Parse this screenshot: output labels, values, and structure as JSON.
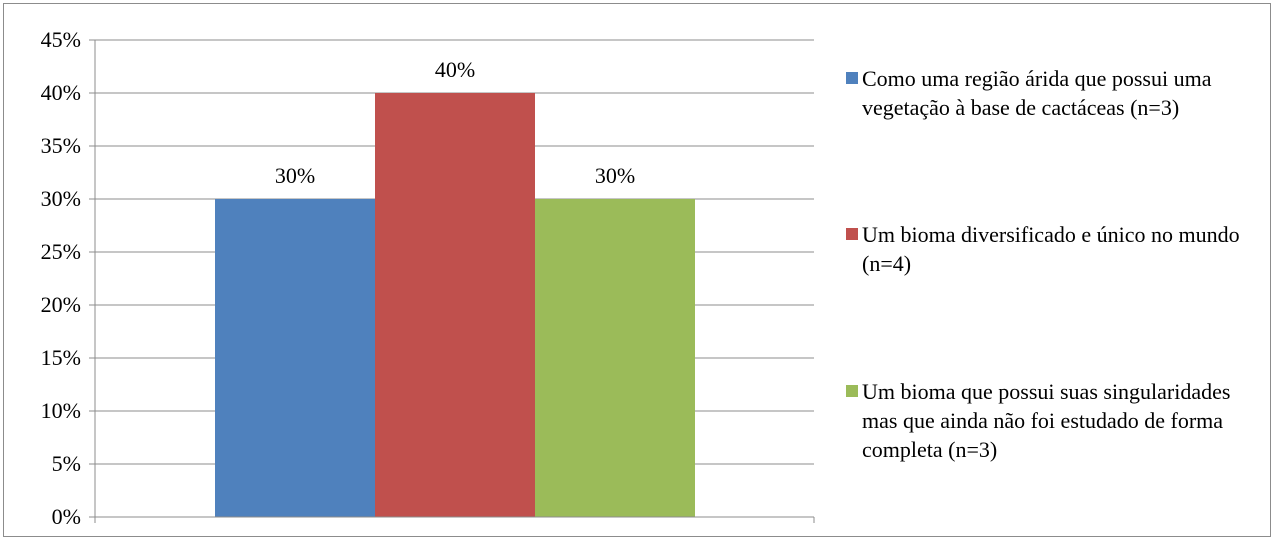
{
  "chart_data": {
    "type": "bar",
    "title": "",
    "xlabel": "",
    "ylabel": "",
    "ylim": [
      0,
      45
    ],
    "yticks": [
      "0%",
      "5%",
      "10%",
      "15%",
      "20%",
      "25%",
      "30%",
      "35%",
      "40%",
      "45%"
    ],
    "grid": true,
    "legend_position": "right",
    "series": [
      {
        "name": "Como uma região árida que possui uma vegetação à base de cactáceas (n=3)",
        "value": 30,
        "label": "30%",
        "color": "#4f81bd"
      },
      {
        "name": "Um bioma diversificado e único no mundo (n=4)",
        "value": 40,
        "label": "40%",
        "color": "#c0504d"
      },
      {
        "name": "Um bioma que possui suas singularidades mas que ainda não foi estudado de forma completa (n=3)",
        "value": 30,
        "label": "30%",
        "color": "#9bbb59"
      }
    ]
  }
}
